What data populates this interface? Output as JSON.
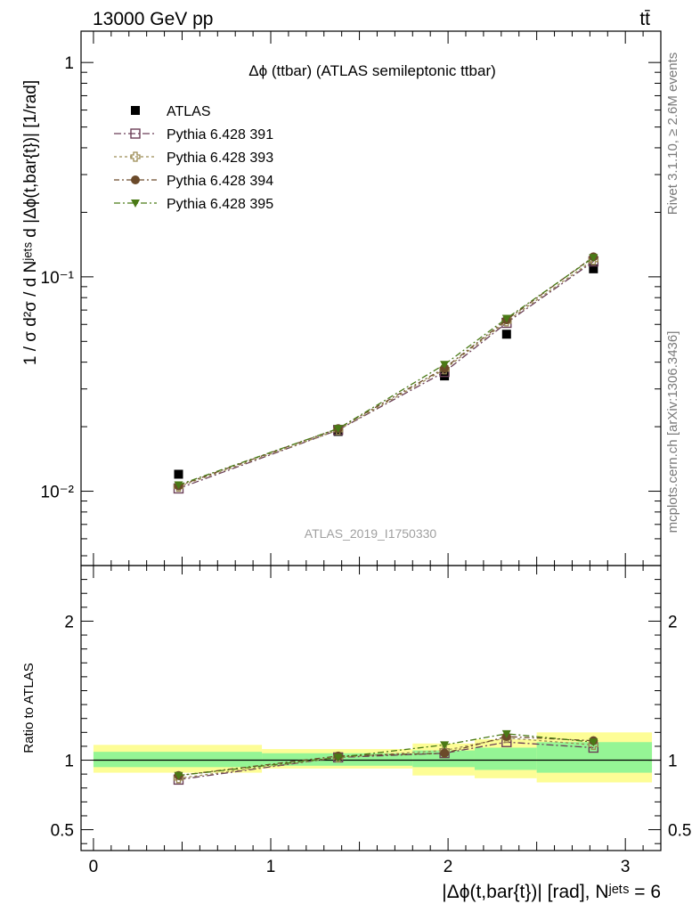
{
  "header": {
    "energy_label": "13000 GeV pp",
    "process_label": "tt̄"
  },
  "side_labels": {
    "rivet": "Rivet 3.1.10, ≥ 2.6M events",
    "mcplots": "mcplots.cern.ch [arXiv:1306.3436]"
  },
  "watermark": "ATLAS_2019_I1750330",
  "chart_data": [
    {
      "type": "scatter",
      "title": "Δϕ (ttbar) (ATLAS semileptonic ttbar)",
      "ylabel": "1 / σ d²σ / d Nʲᵉᵗˢ d |Δϕ(t,bar{t})| [1/rad]",
      "yscale": "log",
      "ylim": [
        0.0045,
        1.4
      ],
      "xlim": [
        -0.07,
        3.2
      ],
      "legend_position": "top-left",
      "y_ticks": [
        {
          "value": 1,
          "label": "1"
        },
        {
          "value": 0.1,
          "label": "10⁻¹"
        },
        {
          "value": 0.01,
          "label": "10⁻²"
        }
      ],
      "x": [
        0.48,
        1.38,
        1.98,
        2.33,
        2.82
      ],
      "series": [
        {
          "name": "ATLAS",
          "values": [
            0.012,
            0.019,
            0.0345,
            0.054,
            0.109
          ],
          "color": "#000000",
          "marker": "square-filled"
        },
        {
          "name": "Pythia 6.428 391",
          "values": [
            0.0103,
            0.0193,
            0.036,
            0.061,
            0.118
          ],
          "color": "#6b3f57",
          "marker": "square-open"
        },
        {
          "name": "Pythia 6.428 393",
          "values": [
            0.0105,
            0.0193,
            0.037,
            0.062,
            0.12
          ],
          "color": "#9c8c55",
          "marker": "cross-open"
        },
        {
          "name": "Pythia 6.428 394",
          "values": [
            0.0106,
            0.0196,
            0.0375,
            0.063,
            0.124
          ],
          "color": "#6b4a2a",
          "marker": "circle-filled"
        },
        {
          "name": "Pythia 6.428 395",
          "values": [
            0.0107,
            0.0196,
            0.039,
            0.064,
            0.123
          ],
          "color": "#4a7a16",
          "marker": "triangle-down-filled"
        }
      ]
    },
    {
      "type": "scatter",
      "ylabel": "Ratio to ATLAS",
      "xlabel": "|Δϕ(t,bar{t})| [rad], Nʲᵉᵗˢ = 6",
      "ylim": [
        0.35,
        2.4
      ],
      "xlim": [
        -0.07,
        3.2
      ],
      "x_ticks": [
        {
          "value": 0,
          "label": "0"
        },
        {
          "value": 1,
          "label": "1"
        },
        {
          "value": 2,
          "label": "2"
        },
        {
          "value": 3,
          "label": "3"
        }
      ],
      "y_ticks": [
        {
          "value": 2,
          "label": "2"
        },
        {
          "value": 1,
          "label": "1"
        },
        {
          "value": 0.5,
          "label": "0.5"
        }
      ],
      "uncertainty_bands": [
        {
          "x0": 0.0,
          "x1": 0.95,
          "inner": [
            0.95,
            1.06
          ],
          "outer": [
            0.91,
            1.11
          ]
        },
        {
          "x0": 0.95,
          "x1": 1.8,
          "inner": [
            0.96,
            1.05
          ],
          "outer": [
            0.94,
            1.08
          ]
        },
        {
          "x0": 1.8,
          "x1": 2.15,
          "inner": [
            0.95,
            1.07
          ],
          "outer": [
            0.89,
            1.12
          ]
        },
        {
          "x0": 2.15,
          "x1": 2.5,
          "inner": [
            0.93,
            1.09
          ],
          "outer": [
            0.87,
            1.15
          ]
        },
        {
          "x0": 2.5,
          "x1": 3.15,
          "inner": [
            0.91,
            1.13
          ],
          "outer": [
            0.84,
            1.2
          ]
        }
      ],
      "x": [
        0.48,
        1.38,
        1.98,
        2.33,
        2.82
      ],
      "series": [
        {
          "name": "Pythia 6.428 391",
          "values": [
            0.86,
            1.02,
            1.05,
            1.13,
            1.09
          ]
        },
        {
          "name": "Pythia 6.428 393",
          "values": [
            0.87,
            1.02,
            1.07,
            1.16,
            1.11
          ]
        },
        {
          "name": "Pythia 6.428 394",
          "values": [
            0.89,
            1.03,
            1.05,
            1.17,
            1.14
          ]
        },
        {
          "name": "Pythia 6.428 395",
          "values": [
            0.89,
            1.02,
            1.11,
            1.19,
            1.13
          ]
        }
      ]
    }
  ]
}
